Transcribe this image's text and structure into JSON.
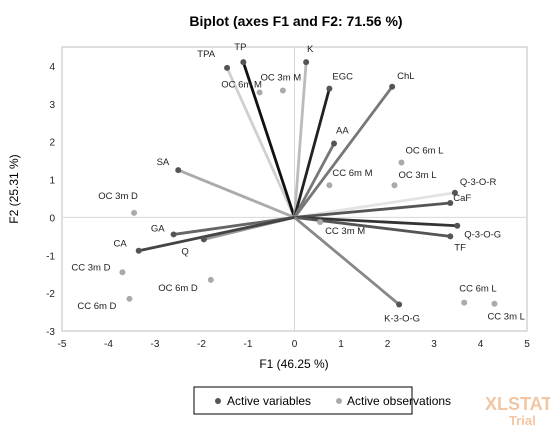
{
  "chart_data": {
    "type": "scatter",
    "title": "Biplot (axes F1 and F2: 71.56 %)",
    "xlabel": "F1 (46.25 %)",
    "ylabel": "F2 (25.31 %)",
    "xlim": [
      -5,
      5
    ],
    "ylim": [
      -3,
      4.5
    ],
    "xticks": [
      -5,
      -4,
      -3,
      -2,
      -1,
      0,
      1,
      2,
      3,
      4,
      5
    ],
    "yticks": [
      -3,
      -2,
      -1,
      0,
      1,
      2,
      3,
      4
    ],
    "grid": false,
    "legend_position": "bottom",
    "series": [
      {
        "name": "Active variables",
        "color": "#555555",
        "points": [
          {
            "label": "TPA",
            "x": -1.45,
            "y": 3.95,
            "line": "#d0d0d0"
          },
          {
            "label": "TP",
            "x": -1.1,
            "y": 4.1,
            "line": "#111111"
          },
          {
            "label": "K",
            "x": 0.25,
            "y": 4.1,
            "line": "#bbbbbb"
          },
          {
            "label": "EGC",
            "x": 0.75,
            "y": 3.4,
            "line": "#222222"
          },
          {
            "label": "ChL",
            "x": 2.1,
            "y": 3.45,
            "line": "#777777"
          },
          {
            "label": "AA",
            "x": 0.85,
            "y": 1.95,
            "line": "#777777"
          },
          {
            "label": "SA",
            "x": -2.5,
            "y": 1.25,
            "line": "#aaaaaa"
          },
          {
            "label": "Q-3-O-R",
            "x": 3.45,
            "y": 0.65,
            "line": "#e3e3e3"
          },
          {
            "label": "CaF",
            "x": 3.35,
            "y": 0.38,
            "line": "#555555"
          },
          {
            "label": "Q-3-O-G",
            "x": 3.5,
            "y": -0.22,
            "line": "#333333"
          },
          {
            "label": "TF",
            "x": 3.35,
            "y": -0.5,
            "line": "#555555"
          },
          {
            "label": "K-3-O-G",
            "x": 2.25,
            "y": -2.3,
            "line": "#888888"
          },
          {
            "label": "GA",
            "x": -2.6,
            "y": -0.45,
            "line": "#666666"
          },
          {
            "label": "Q",
            "x": -1.95,
            "y": -0.58,
            "line": "#999999"
          },
          {
            "label": "CA",
            "x": -3.35,
            "y": -0.88,
            "line": "#444444"
          }
        ]
      },
      {
        "name": "Active observations",
        "color": "#aaaaaa",
        "points": [
          {
            "label": "OC 3m M",
            "x": -0.25,
            "y": 3.35
          },
          {
            "label": "OC 6m M",
            "x": -0.75,
            "y": 3.3
          },
          {
            "label": "OC 6m L",
            "x": 2.3,
            "y": 1.45
          },
          {
            "label": "OC 3m L",
            "x": 2.15,
            "y": 0.85
          },
          {
            "label": "CC 6m M",
            "x": 0.75,
            "y": 0.85
          },
          {
            "label": "CC 3m M",
            "x": 0.55,
            "y": -0.12
          },
          {
            "label": "OC 3m D",
            "x": -3.45,
            "y": 0.12
          },
          {
            "label": "OC 6m D",
            "x": -1.8,
            "y": -1.65
          },
          {
            "label": "CC 3m D",
            "x": -3.7,
            "y": -1.45
          },
          {
            "label": "CC 6m D",
            "x": -3.55,
            "y": -2.15
          },
          {
            "label": "CC 6m L",
            "x": 3.65,
            "y": -2.25
          },
          {
            "label": "CC 3m L",
            "x": 4.3,
            "y": -2.28
          }
        ]
      }
    ]
  },
  "watermark": {
    "brand": "XLSTAT",
    "edition": "Trial"
  }
}
